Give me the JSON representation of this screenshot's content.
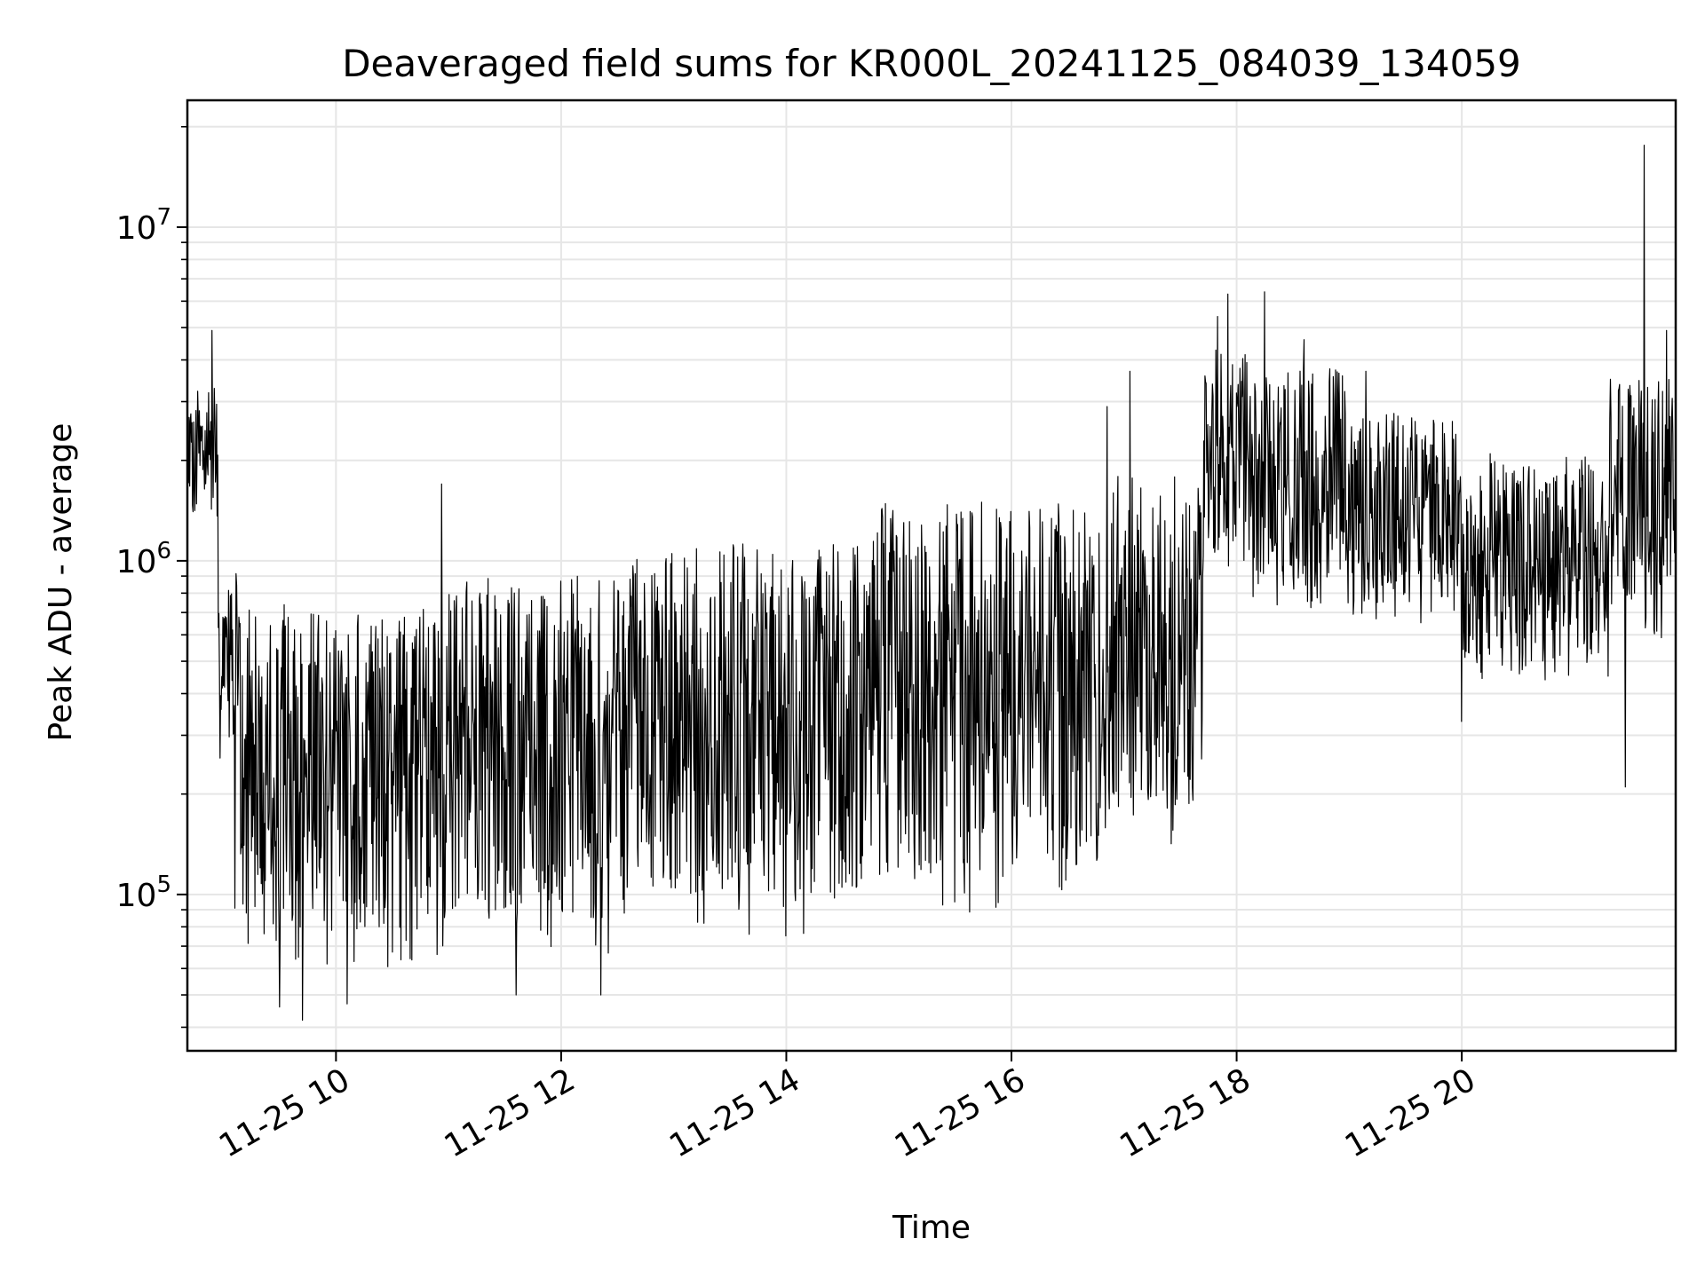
{
  "chart_data": {
    "type": "line",
    "title": "Deaveraged field sums for KR000L_20241125_084039_134059",
    "xlabel": "Time",
    "ylabel": "Peak ADU - average",
    "yscale": "log",
    "ylim": [
      34000,
      24000000
    ],
    "xlim_hours": [
      8.68,
      21.9
    ],
    "grid": "on",
    "line_color": "#000000",
    "x_ticks": [
      {
        "hour": 10,
        "label": "11-25 10"
      },
      {
        "hour": 12,
        "label": "11-25 12"
      },
      {
        "hour": 14,
        "label": "11-25 14"
      },
      {
        "hour": 16,
        "label": "11-25 16"
      },
      {
        "hour": 18,
        "label": "11-25 18"
      },
      {
        "hour": 20,
        "label": "11-25 20"
      }
    ],
    "y_ticks": [
      {
        "value": 100000,
        "base": "10",
        "exp": "5"
      },
      {
        "value": 1000000,
        "base": "10",
        "exp": "6"
      },
      {
        "value": 10000000,
        "base": "10",
        "exp": "7"
      }
    ],
    "segments": [
      {
        "start": 8.68,
        "end": 8.95,
        "lo": 1200000,
        "hi": 3300000
      },
      {
        "start": 8.95,
        "end": 9.15,
        "lo": 250000,
        "hi": 1000000
      },
      {
        "start": 9.15,
        "end": 10.9,
        "lo": 60000,
        "hi": 750000
      },
      {
        "start": 10.9,
        "end": 12.6,
        "lo": 65000,
        "hi": 900000
      },
      {
        "start": 12.6,
        "end": 14.7,
        "lo": 75000,
        "hi": 1150000
      },
      {
        "start": 14.7,
        "end": 16.9,
        "lo": 85000,
        "hi": 1500000
      },
      {
        "start": 16.9,
        "end": 17.7,
        "lo": 140000,
        "hi": 1800000
      },
      {
        "start": 17.7,
        "end": 18.1,
        "lo": 900000,
        "hi": 4300000
      },
      {
        "start": 18.1,
        "end": 19.0,
        "lo": 700000,
        "hi": 3800000
      },
      {
        "start": 19.0,
        "end": 20.0,
        "lo": 650000,
        "hi": 2800000
      },
      {
        "start": 20.0,
        "end": 21.3,
        "lo": 430000,
        "hi": 2100000
      },
      {
        "start": 21.3,
        "end": 21.9,
        "lo": 550000,
        "hi": 3600000
      }
    ],
    "spikes": [
      {
        "hour": 8.9,
        "value": 4900000
      },
      {
        "hour": 9.1,
        "value": 91000
      },
      {
        "hour": 9.5,
        "value": 46000
      },
      {
        "hour": 9.7,
        "value": 42000
      },
      {
        "hour": 10.1,
        "value": 47000
      },
      {
        "hour": 10.94,
        "value": 1700000
      },
      {
        "hour": 11.6,
        "value": 50000
      },
      {
        "hour": 12.35,
        "value": 50000
      },
      {
        "hour": 16.85,
        "value": 2900000
      },
      {
        "hour": 17.05,
        "value": 3700000
      },
      {
        "hour": 17.83,
        "value": 5400000
      },
      {
        "hour": 17.92,
        "value": 6300000
      },
      {
        "hour": 18.25,
        "value": 6400000
      },
      {
        "hour": 18.6,
        "value": 4600000
      },
      {
        "hour": 19.15,
        "value": 3700000
      },
      {
        "hour": 20.0,
        "value": 330000
      },
      {
        "hour": 21.45,
        "value": 210000
      },
      {
        "hour": 21.62,
        "value": 17600000
      },
      {
        "hour": 21.82,
        "value": 4900000
      }
    ]
  }
}
